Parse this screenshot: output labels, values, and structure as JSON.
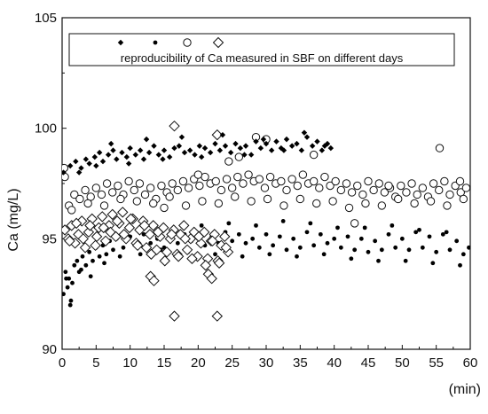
{
  "chart_data": {
    "type": "scatter",
    "title": "",
    "xlabel": "(min)",
    "ylabel": "Ca (mg/L)",
    "xlim": [
      0,
      60
    ],
    "ylim": [
      90,
      105
    ],
    "xticks": [
      0,
      5,
      10,
      15,
      20,
      25,
      30,
      35,
      40,
      45,
      50,
      55,
      60
    ],
    "yticks": [
      90,
      95,
      100,
      105
    ],
    "grid": false,
    "legend": {
      "text": "reproducibility of Ca measured in SBF on different days",
      "placement": "top",
      "markers": [
        "filled-diamond",
        "filled-circle",
        "open-circle",
        "open-diamond"
      ]
    },
    "series": [
      {
        "marker": "filled-diamond",
        "x": [
          0.2,
          1.2,
          2.0,
          2.8,
          3.5,
          4.0,
          4.8,
          5.5,
          6.0,
          6.8,
          7.5,
          8.0,
          8.8,
          9.5,
          10.0,
          10.8,
          11.5,
          12.0,
          12.8,
          13.5,
          14.2,
          15.0,
          15.8,
          16.5,
          17.2,
          18.0,
          18.8,
          19.5,
          20.2,
          21.0,
          21.8,
          22.5,
          23.2,
          24.0,
          24.8,
          25.5,
          26.2,
          27.0,
          27.8,
          28.5,
          29.2,
          30.0,
          30.8,
          31.5,
          32.2,
          33.0,
          33.8,
          34.5,
          35.2,
          36.0,
          36.8,
          37.5,
          38.2,
          39.0,
          39.5,
          2.5,
          5.0,
          7.2,
          9.8,
          12.4,
          14.8,
          17.6,
          20.5,
          23.6,
          26.8,
          29.6,
          32.6,
          35.6,
          38.6
        ],
        "y": [
          98.0,
          98.3,
          98.5,
          98.2,
          98.6,
          98.4,
          98.7,
          98.9,
          98.5,
          98.8,
          99.0,
          98.6,
          98.9,
          98.7,
          99.1,
          98.8,
          99.0,
          98.6,
          98.9,
          99.2,
          98.8,
          99.0,
          98.7,
          99.1,
          99.2,
          98.9,
          99.0,
          98.8,
          99.2,
          99.1,
          98.9,
          99.3,
          99.0,
          99.2,
          98.9,
          99.3,
          99.1,
          99.2,
          98.8,
          99.4,
          99.1,
          99.3,
          99.0,
          99.4,
          99.1,
          99.5,
          99.2,
          99.3,
          99.0,
          99.6,
          99.2,
          99.4,
          99.0,
          99.3,
          99.1,
          98.0,
          98.3,
          99.3,
          98.4,
          99.5,
          98.6,
          99.6,
          98.7,
          99.7,
          98.8,
          99.5,
          99.0,
          99.8,
          99.2
        ]
      },
      {
        "marker": "filled-circle",
        "x": [
          0.2,
          0.5,
          0.8,
          1.0,
          1.3,
          1.5,
          1.8,
          2.2,
          2.5,
          3.0,
          3.5,
          4.0,
          4.5,
          5.0,
          5.5,
          6.0,
          6.5,
          7.0,
          7.5,
          8.0,
          9.0,
          10.0,
          11.0,
          12.0,
          13.0,
          14.0,
          15.0,
          16.0,
          17.0,
          18.0,
          19.0,
          20.0,
          21.0,
          22.0,
          23.0,
          24.0,
          25.0,
          26.0,
          27.0,
          28.0,
          29.0,
          30.0,
          31.0,
          32.0,
          33.0,
          34.0,
          35.0,
          36.0,
          37.0,
          38.0,
          39.0,
          40.0,
          41.0,
          42.0,
          43.0,
          44.0,
          45.0,
          46.0,
          47.0,
          48.0,
          49.0,
          50.0,
          51.0,
          52.0,
          53.0,
          54.0,
          55.0,
          56.0,
          57.0,
          58.0,
          59.0,
          59.8,
          0.6,
          1.2,
          2.8,
          4.2,
          6.2,
          8.5,
          11.5,
          14.5,
          18.5,
          22.5,
          26.5,
          30.5,
          34.5,
          38.5,
          42.5,
          46.5,
          50.5,
          54.5,
          58.5,
          20.5,
          24.5,
          28.5,
          32.5,
          36.5,
          40.5,
          44.5,
          48.5,
          52.5,
          56.5
        ],
        "y": [
          92.5,
          93.5,
          92.8,
          93.2,
          92.2,
          93.0,
          93.8,
          94.0,
          93.5,
          94.2,
          93.8,
          94.4,
          94.0,
          94.6,
          94.2,
          94.7,
          94.3,
          94.9,
          94.5,
          95.0,
          94.6,
          95.1,
          94.7,
          95.2,
          94.8,
          95.0,
          94.6,
          95.1,
          94.8,
          95.2,
          94.9,
          95.0,
          94.7,
          95.1,
          94.8,
          95.3,
          94.9,
          95.2,
          94.8,
          95.0,
          94.6,
          95.2,
          94.7,
          95.1,
          94.5,
          95.0,
          94.6,
          95.3,
          94.7,
          95.2,
          94.8,
          95.0,
          94.6,
          95.1,
          94.5,
          95.0,
          94.4,
          94.9,
          94.5,
          95.2,
          94.6,
          95.0,
          94.5,
          95.3,
          94.6,
          95.1,
          94.4,
          95.2,
          94.5,
          94.9,
          94.3,
          94.6,
          93.2,
          92.0,
          93.6,
          93.3,
          93.9,
          94.2,
          94.3,
          94.5,
          94.4,
          94.3,
          94.2,
          94.3,
          94.2,
          94.3,
          94.1,
          94.0,
          94.0,
          93.9,
          93.8,
          95.6,
          95.7,
          95.6,
          95.8,
          95.7,
          95.5,
          95.5,
          95.6,
          95.4,
          95.3
        ]
      },
      {
        "marker": "open-circle",
        "x": [
          0.3,
          1.0,
          1.8,
          2.6,
          3.4,
          4.2,
          5.0,
          5.8,
          6.6,
          7.4,
          8.2,
          9.0,
          9.8,
          10.6,
          11.4,
          12.2,
          13.0,
          13.8,
          14.6,
          15.4,
          16.2,
          17.0,
          17.8,
          18.6,
          19.4,
          20.2,
          21.0,
          21.8,
          22.6,
          23.4,
          24.2,
          25.0,
          25.8,
          26.6,
          27.4,
          28.2,
          29.0,
          29.8,
          30.6,
          31.4,
          32.2,
          33.0,
          33.8,
          34.6,
          35.4,
          36.2,
          37.0,
          37.8,
          38.6,
          39.4,
          40.2,
          41.0,
          41.8,
          42.6,
          43.4,
          44.2,
          45.0,
          45.8,
          46.6,
          47.4,
          48.2,
          49.0,
          49.8,
          50.6,
          51.4,
          52.2,
          53.0,
          53.8,
          54.6,
          55.4,
          56.2,
          57.0,
          57.8,
          58.6,
          59.4,
          0.4,
          1.4,
          3.8,
          6.2,
          8.6,
          11.0,
          13.4,
          15.8,
          18.2,
          20.6,
          23.0,
          25.4,
          27.8,
          30.2,
          32.6,
          35.0,
          37.4,
          39.8,
          42.2,
          44.6,
          47.0,
          49.4,
          51.8,
          54.2,
          56.6,
          59.0,
          37.0,
          28.5,
          30.0,
          24.5,
          26.0,
          20.0,
          15.0,
          43.0,
          48.0,
          55.5,
          58.5
        ],
        "y": [
          98.2,
          96.5,
          97.0,
          96.8,
          97.2,
          96.9,
          97.3,
          97.0,
          97.5,
          97.1,
          97.4,
          97.0,
          97.6,
          97.2,
          97.5,
          97.0,
          97.3,
          96.8,
          97.4,
          97.1,
          97.5,
          97.2,
          97.6,
          97.3,
          97.7,
          97.4,
          97.8,
          97.5,
          97.6,
          97.2,
          97.7,
          97.3,
          97.8,
          97.5,
          97.9,
          97.6,
          97.7,
          97.3,
          97.8,
          97.5,
          97.6,
          97.2,
          97.7,
          97.4,
          97.9,
          97.5,
          97.6,
          97.3,
          97.8,
          97.4,
          97.6,
          97.2,
          97.5,
          97.1,
          97.4,
          97.0,
          97.6,
          97.2,
          97.5,
          97.1,
          97.3,
          96.9,
          97.4,
          97.1,
          97.5,
          97.0,
          97.3,
          96.9,
          97.5,
          97.2,
          97.6,
          97.0,
          97.4,
          97.1,
          97.3,
          97.8,
          96.3,
          96.6,
          96.5,
          96.8,
          96.7,
          96.6,
          96.9,
          96.5,
          96.7,
          96.6,
          96.9,
          96.7,
          96.8,
          96.5,
          96.8,
          96.6,
          96.7,
          96.4,
          96.6,
          96.5,
          96.8,
          96.6,
          96.7,
          96.5,
          96.8,
          98.8,
          99.6,
          99.5,
          98.5,
          98.7,
          97.9,
          96.4,
          95.7,
          97.4,
          99.1,
          97.6
        ]
      },
      {
        "marker": "open-diamond",
        "x": [
          0.4,
          0.9,
          1.4,
          1.9,
          2.4,
          2.9,
          3.4,
          3.9,
          4.4,
          4.9,
          5.4,
          5.9,
          6.4,
          6.9,
          7.4,
          7.9,
          8.4,
          8.9,
          9.4,
          9.9,
          10.4,
          10.9,
          11.4,
          11.9,
          12.4,
          12.9,
          13.4,
          13.9,
          14.4,
          14.9,
          15.4,
          15.9,
          16.4,
          16.9,
          17.4,
          17.9,
          18.4,
          18.9,
          19.4,
          19.9,
          20.4,
          20.9,
          21.4,
          21.9,
          22.4,
          22.9,
          23.4,
          23.9,
          24.4,
          1.1,
          3.1,
          5.1,
          7.1,
          9.1,
          11.1,
          13.1,
          15.1,
          17.1,
          19.1,
          21.1,
          23.1,
          2.1,
          4.1,
          6.1,
          8.1,
          10.1,
          12.1,
          14.1,
          16.1,
          18.1,
          20.1,
          22.1,
          24.1,
          16.5,
          22.8,
          16.5,
          22.8,
          13.0,
          13.5,
          21.5,
          22.0
        ],
        "y": [
          95.4,
          95.0,
          95.6,
          94.8,
          95.2,
          95.8,
          94.6,
          95.3,
          95.9,
          94.7,
          95.5,
          96.0,
          94.9,
          95.6,
          96.1,
          95.1,
          95.7,
          96.2,
          95.0,
          95.5,
          95.9,
          94.8,
          95.4,
          95.8,
          94.6,
          95.2,
          95.6,
          94.5,
          95.1,
          95.5,
          94.4,
          95.0,
          95.4,
          94.3,
          95.2,
          95.6,
          94.5,
          95.0,
          95.3,
          94.2,
          94.8,
          95.3,
          94.1,
          94.9,
          95.2,
          94.0,
          94.7,
          95.1,
          94.4,
          94.9,
          95.0,
          95.1,
          95.3,
          95.2,
          94.7,
          94.3,
          94.0,
          94.2,
          94.1,
          93.8,
          93.9,
          95.7,
          95.6,
          95.5,
          95.8,
          95.9,
          95.6,
          95.3,
          95.2,
          95.0,
          95.1,
          94.9,
          94.6,
          100.1,
          99.7,
          91.5,
          91.5,
          93.3,
          93.1,
          93.4,
          93.2
        ]
      }
    ]
  }
}
